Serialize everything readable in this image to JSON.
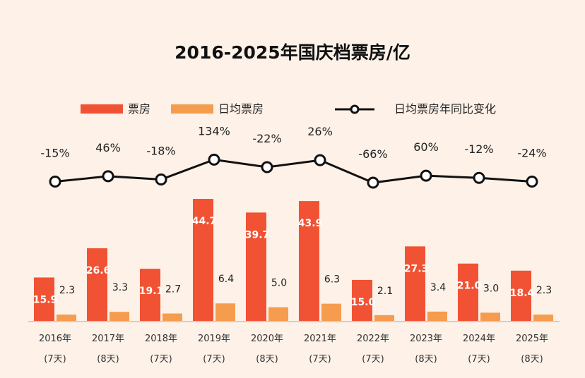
{
  "chart_data": {
    "type": "bar",
    "title": "2016-2025年国庆档票房/亿",
    "categories": [
      "2016年",
      "2017年",
      "2018年",
      "2019年",
      "2020年",
      "2021年",
      "2022年",
      "2023年",
      "2024年",
      "2025年"
    ],
    "category_sublabels": [
      "(7天)",
      "(8天)",
      "(7天)",
      "(7天)",
      "(8天)",
      "(7天)",
      "(7天)",
      "(8天)",
      "(7天)",
      "(8天)"
    ],
    "series": [
      {
        "name": "票房",
        "type": "bar",
        "color": "#f15234",
        "values": [
          15.9,
          26.6,
          19.1,
          44.7,
          39.7,
          43.9,
          15.0,
          27.3,
          21.0,
          18.4
        ],
        "labels": [
          "15.9",
          "26.6",
          "19.1",
          "44.7",
          "39.7",
          "43.9",
          "15.0",
          "27.3",
          "21.0",
          "18.4"
        ]
      },
      {
        "name": "日均票房",
        "type": "bar",
        "color": "#f59c4f",
        "values": [
          2.3,
          3.3,
          2.7,
          6.4,
          5.0,
          6.3,
          2.1,
          3.4,
          3.0,
          2.3
        ],
        "labels": [
          "2.3",
          "3.3",
          "2.7",
          "6.4",
          "5.0",
          "6.3",
          "2.1",
          "3.4",
          "3.0",
          "2.3"
        ]
      },
      {
        "name": "日均票房年同比变化",
        "type": "line",
        "color": "#111111",
        "values": [
          -15,
          46,
          -18,
          134,
          -22,
          26,
          -66,
          60,
          -12,
          -24
        ],
        "labels": [
          "-15%",
          "46%",
          "-18%",
          "134%",
          "-22%",
          "26%",
          "-66%",
          "60%",
          "-12%",
          "-24%"
        ]
      }
    ],
    "legend_position": "top",
    "grid": false,
    "y_axis_shown": false
  }
}
